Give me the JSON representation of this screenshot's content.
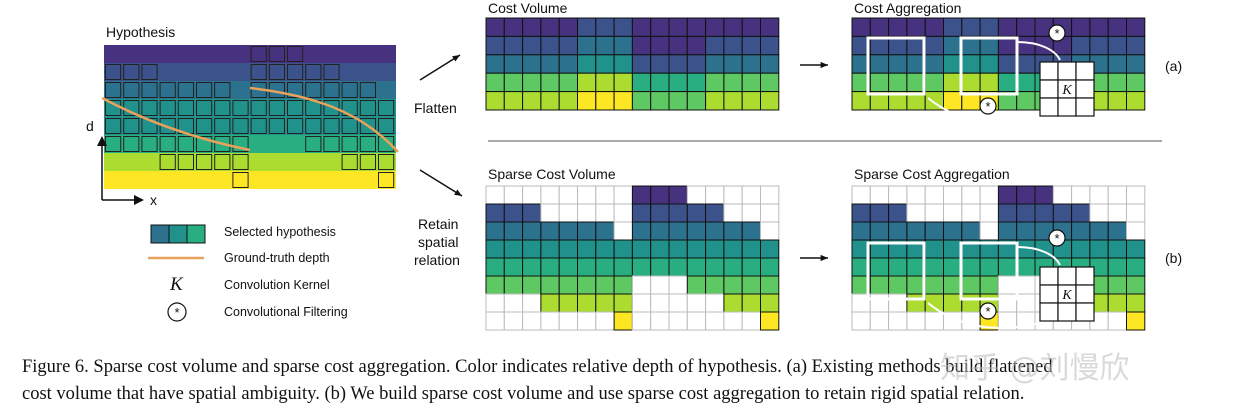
{
  "labels": {
    "hypothesis": "Hypothesis",
    "cost_volume": "Cost Volume",
    "cost_aggregation": "Cost Aggregation",
    "sparse_cost_volume": "Sparse Cost Volume",
    "sparse_cost_aggregation": "Sparse Cost Aggregation",
    "flatten": "Flatten",
    "retain_1": "Retain",
    "retain_2": "spatial",
    "retain_3": "relation",
    "axis_d": "d",
    "axis_x": "x",
    "panel_a": "(a)",
    "panel_b": "(b)",
    "kernel_letter": "K",
    "conv_symbol": "*"
  },
  "legend": {
    "selected": "Selected hypothesis",
    "gt": "Ground-truth depth",
    "kernel": "Convolution Kernel",
    "filter": "Convolutional Filtering"
  },
  "caption": {
    "line1": "Figure 6. Sparse cost volume and sparse cost aggregation. Color indicates relative depth of hypothesis. (a) Existing methods build flattened",
    "line2": "cost volume that have spatial ambiguity. (b) We build sparse cost volume and use sparse cost aggregation to retain rigid spatial relation."
  },
  "watermark": "知乎 @刘慢欣",
  "colors": {
    "depth_levels": [
      "#46327e",
      "#3b528b",
      "#2c728e",
      "#21918c",
      "#28ae80",
      "#5ec962",
      "#addc30",
      "#fde725"
    ],
    "ground_truth": "#e8a25c"
  }
}
